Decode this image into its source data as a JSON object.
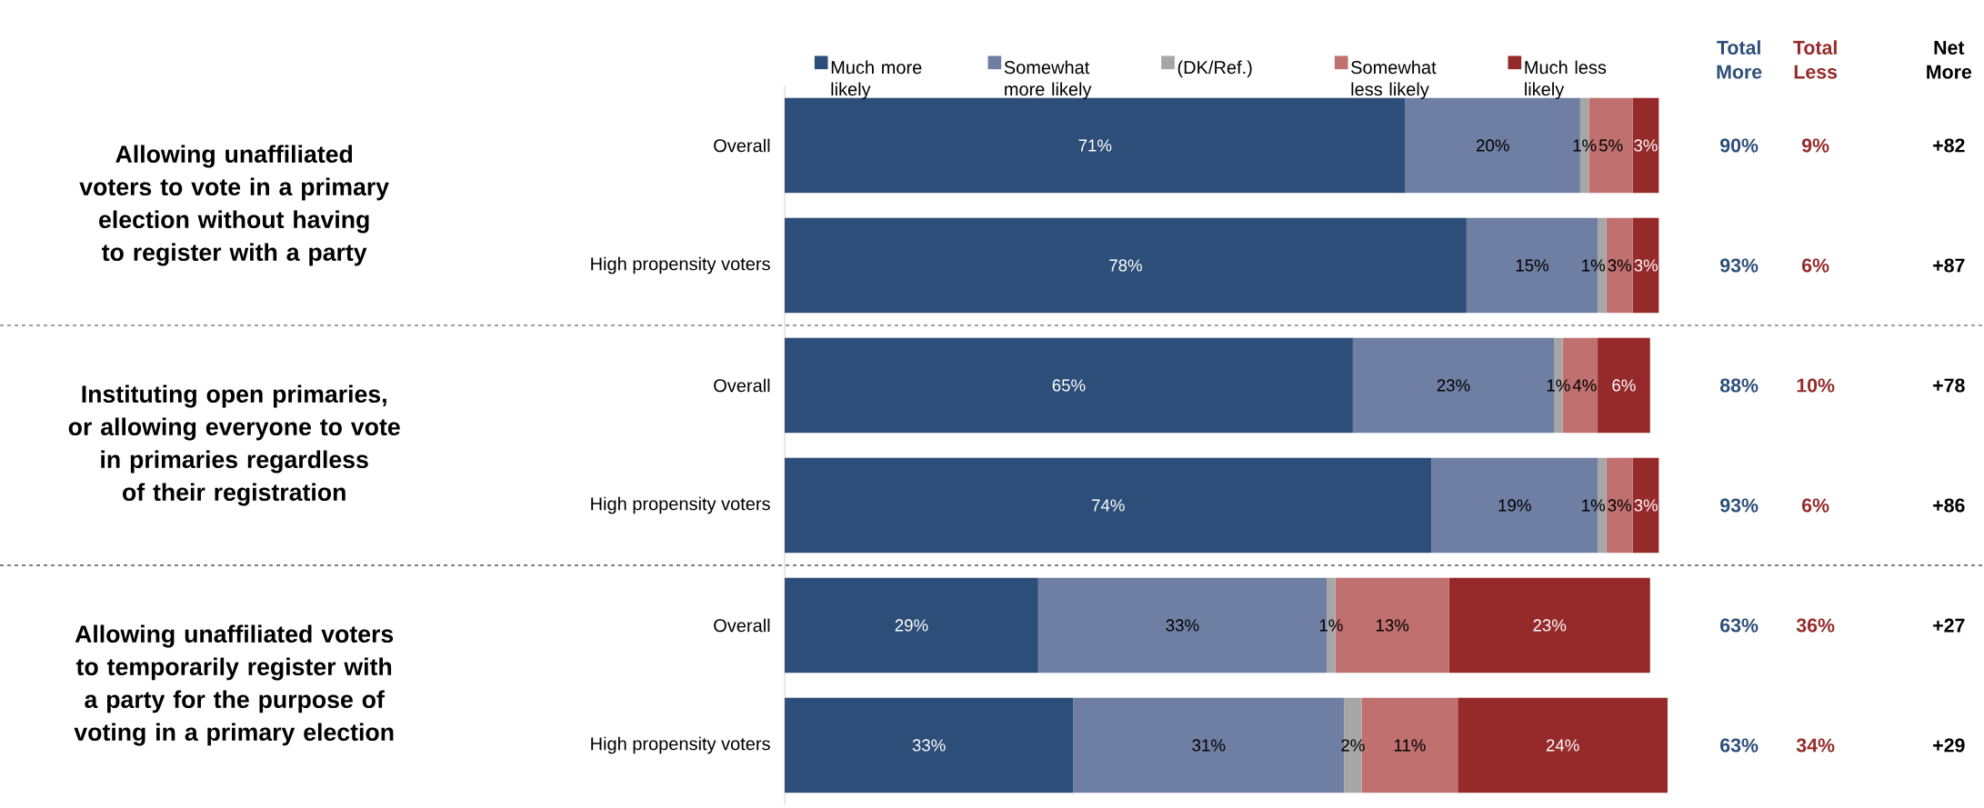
{
  "chart_data": {
    "type": "bar",
    "orientation": "horizontal",
    "stacked": true,
    "legend": "top",
    "tick_labels": "y",
    "grid": false,
    "categories": [
      "Overall",
      "High propensity voters",
      "Overall",
      "High propensity voters",
      "Overall",
      "High propensity voters"
    ],
    "xlim": [
      0,
      101
    ],
    "series": [
      {
        "name": "Much more likely",
        "color": "#2c4e79",
        "values": [
          71,
          78,
          65,
          74,
          29,
          33
        ],
        "value_labels": [
          "71%",
          "78%",
          "65%",
          "74%",
          "29%",
          "33%"
        ]
      },
      {
        "name": "Somewhat more likely",
        "color": "#6f7fa3",
        "values": [
          20,
          15,
          23,
          19,
          33,
          31
        ],
        "value_labels": [
          "20%",
          "15%",
          "23%",
          "19%",
          "33%",
          "31%"
        ]
      },
      {
        "name": "(DK/Ref.)",
        "color": "#a6a6a6",
        "values": [
          1,
          1,
          1,
          1,
          1,
          2
        ],
        "value_labels": [
          "1%",
          "1%",
          "1%",
          "1%",
          "1%",
          "2%"
        ]
      },
      {
        "name": "Somewhat less likely",
        "color": "#c0706f",
        "values": [
          5,
          3,
          4,
          3,
          13,
          11
        ],
        "value_labels": [
          "5%",
          "3%",
          "4%",
          "3%",
          "13%",
          "11%"
        ]
      },
      {
        "name": "Much less likely",
        "color": "#962a2a",
        "values": [
          3,
          3,
          6,
          3,
          23,
          24
        ],
        "value_labels": [
          "3%",
          "3%",
          "6%",
          "3%",
          "23%",
          "24%"
        ]
      }
    ],
    "annotations": [
      "Allowing unaffiliated voters to vote in a primary election without having to register with a party",
      "Instituting open primaries, or allowing everyone to vote in primaries regardless of their registration",
      "Allowing unaffiliated voters to temporarily register with a party for the purpose of voting in a primary election",
      "Total More",
      "Total Less",
      "Net More",
      "90%",
      "9%",
      "+82",
      "93%",
      "6%",
      "+87",
      "88%",
      "10%",
      "+78",
      "93%",
      "6%",
      "+86",
      "63%",
      "36%",
      "+27",
      "63%",
      "34%",
      "+29"
    ]
  }
}
